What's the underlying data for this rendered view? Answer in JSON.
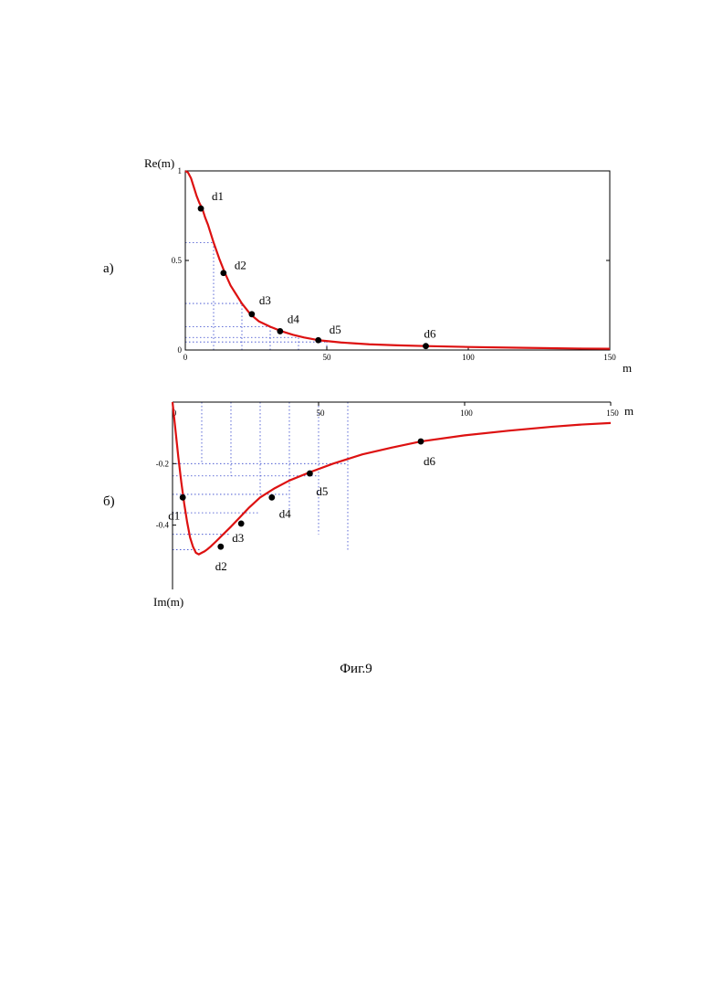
{
  "figure": {
    "caption": "Фиг.9",
    "panel_a_label": "а)",
    "panel_b_label": "б)"
  },
  "chart_data": [
    {
      "type": "line",
      "ylabel": "Re(m)",
      "xlabel": "m",
      "xlim": [
        0,
        150
      ],
      "ylim": [
        0,
        1.0
      ],
      "x_ticks": [
        "0",
        "50",
        "100",
        "150"
      ],
      "y_ticks": [
        "0",
        "0.5",
        "1"
      ],
      "x_tick_values": [
        0,
        50,
        100,
        150
      ],
      "y_tick_values": [
        0,
        0.5,
        1
      ],
      "grid": false,
      "curve_color": "#dd1111",
      "series": [
        {
          "x": [
            0,
            1,
            2,
            3,
            4,
            5,
            6,
            7,
            8,
            10,
            12,
            14,
            16,
            18,
            20,
            23,
            26,
            30,
            34,
            38,
            42,
            47,
            55,
            65,
            75,
            85,
            100,
            120,
            140,
            150
          ],
          "y": [
            1.0,
            0.99,
            0.96,
            0.91,
            0.86,
            0.82,
            0.79,
            0.74,
            0.7,
            0.6,
            0.51,
            0.43,
            0.36,
            0.31,
            0.26,
            0.2,
            0.16,
            0.13,
            0.105,
            0.085,
            0.07,
            0.055,
            0.042,
            0.032,
            0.026,
            0.022,
            0.017,
            0.012,
            0.008,
            0.007
          ]
        }
      ],
      "points": [
        {
          "label": "d1",
          "x": 5.5,
          "y": 0.79
        },
        {
          "label": "d2",
          "x": 13.5,
          "y": 0.43
        },
        {
          "label": "d3",
          "x": 23.5,
          "y": 0.2
        },
        {
          "label": "d4",
          "x": 33.5,
          "y": 0.105
        },
        {
          "label": "d5",
          "x": 47,
          "y": 0.055
        },
        {
          "label": "d6",
          "x": 85,
          "y": 0.022
        }
      ],
      "guides_x": [
        10,
        20,
        30,
        40,
        50
      ],
      "guides_y": [
        0.6,
        0.26,
        0.13,
        0.07,
        0.045
      ]
    },
    {
      "type": "line",
      "ylabel": "Im(m)",
      "xlabel": "m",
      "xlim": [
        0,
        150
      ],
      "ylim": [
        -0.52,
        0
      ],
      "x_ticks": [
        "0",
        "50",
        "100",
        "150"
      ],
      "y_ticks": [
        "-0.2",
        "-0.4"
      ],
      "x_tick_values": [
        0,
        50,
        100,
        150
      ],
      "y_tick_values": [
        -0.2,
        -0.4
      ],
      "grid": false,
      "curve_color": "#dd1111",
      "series": [
        {
          "x": [
            0,
            1,
            2,
            3,
            4,
            5,
            6,
            7,
            8,
            9,
            10,
            11,
            12,
            13,
            15,
            17,
            20,
            23,
            26,
            30,
            35,
            40,
            47,
            55,
            65,
            75,
            85,
            100,
            115,
            130,
            140,
            150
          ],
          "y": [
            0,
            -0.09,
            -0.18,
            -0.26,
            -0.33,
            -0.39,
            -0.44,
            -0.47,
            -0.49,
            -0.495,
            -0.49,
            -0.485,
            -0.478,
            -0.47,
            -0.452,
            -0.433,
            -0.405,
            -0.375,
            -0.345,
            -0.31,
            -0.28,
            -0.255,
            -0.228,
            -0.2,
            -0.17,
            -0.148,
            -0.128,
            -0.108,
            -0.093,
            -0.08,
            -0.073,
            -0.068
          ]
        }
      ],
      "points": [
        {
          "label": "d1",
          "x": 3.5,
          "y": -0.31
        },
        {
          "label": "d2",
          "x": 16.5,
          "y": -0.47
        },
        {
          "label": "d3",
          "x": 23.5,
          "y": -0.395
        },
        {
          "label": "d4",
          "x": 34,
          "y": -0.31
        },
        {
          "label": "d5",
          "x": 47,
          "y": -0.232
        },
        {
          "label": "d6",
          "x": 85,
          "y": -0.128
        }
      ],
      "guides_x": [
        10,
        20,
        30,
        40,
        50,
        60
      ],
      "guides_y": [
        -0.2,
        -0.24,
        -0.3,
        -0.36,
        -0.43,
        -0.48
      ]
    }
  ]
}
